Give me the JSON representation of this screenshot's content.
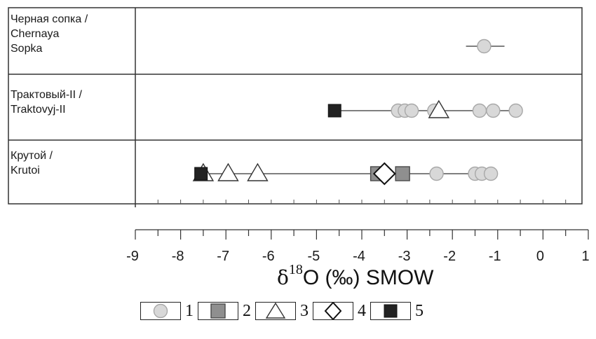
{
  "chart_data": {
    "type": "scatter",
    "xlabel": {
      "delta": "δ",
      "sup": "18",
      "rest": "O (‰) SMOW"
    },
    "xlim": [
      -9,
      1
    ],
    "xticks": [
      "-9",
      "-8",
      "-7",
      "-6",
      "-5",
      "-4",
      "-3",
      "-2",
      "-1",
      "0",
      "1"
    ],
    "grid": false,
    "rows": [
      {
        "label": "Черная сопка /\nChernaya\nSopka",
        "range": [
          -1.7,
          -0.85
        ],
        "points": [
          {
            "type": 1,
            "x": -1.3
          }
        ]
      },
      {
        "label": "Трактовый-II /\nTraktovyj-II",
        "range": [
          -4.6,
          -0.55
        ],
        "points": [
          {
            "type": 1,
            "x": -3.2
          },
          {
            "type": 1,
            "x": -3.05
          },
          {
            "type": 1,
            "x": -2.9
          },
          {
            "type": 1,
            "x": -2.4
          },
          {
            "type": 1,
            "x": -1.4
          },
          {
            "type": 1,
            "x": -1.1
          },
          {
            "type": 1,
            "x": -0.6
          },
          {
            "type": 3,
            "x": -2.3
          },
          {
            "type": 5,
            "x": -4.6
          }
        ]
      },
      {
        "label": "Крутой /\nKrutoi",
        "range": [
          -7.55,
          -1.05
        ],
        "points": [
          {
            "type": 1,
            "x": -2.35
          },
          {
            "type": 1,
            "x": -1.5
          },
          {
            "type": 1,
            "x": -1.35
          },
          {
            "type": 1,
            "x": -1.15
          },
          {
            "type": 2,
            "x": -3.65
          },
          {
            "type": 2,
            "x": -3.1
          },
          {
            "type": 3,
            "x": -7.5
          },
          {
            "type": 3,
            "x": -6.95
          },
          {
            "type": 3,
            "x": -6.3
          },
          {
            "type": 4,
            "x": -3.5
          },
          {
            "type": 5,
            "x": -7.55
          }
        ]
      }
    ],
    "legend": [
      {
        "type": 1,
        "label": "1",
        "color": "#d8d8d8"
      },
      {
        "type": 2,
        "label": "2",
        "color": "#8f8f8f"
      },
      {
        "type": 3,
        "label": "3",
        "color": "#ffffff"
      },
      {
        "type": 4,
        "label": "4",
        "color": "#ffffff"
      },
      {
        "type": 5,
        "label": "5",
        "color": "#222222"
      }
    ]
  }
}
